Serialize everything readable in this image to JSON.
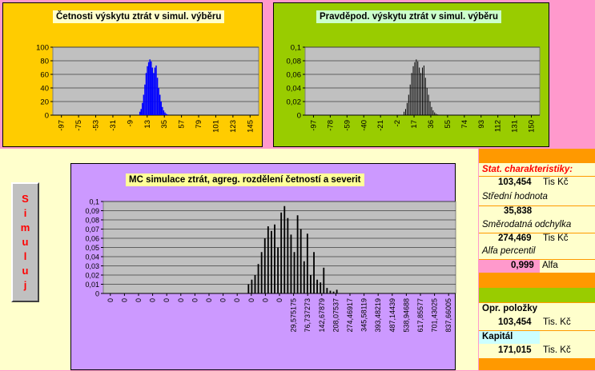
{
  "chart_data": [
    {
      "type": "bar",
      "title": "Četnosti výskytu ztrát v simul. výběru",
      "color": "#0000ff",
      "ylim": [
        0,
        100
      ],
      "yticks": [
        "0",
        "20",
        "40",
        "60",
        "80",
        "100"
      ],
      "xticks": [
        "-97",
        "-75",
        "-53",
        "-31",
        "-9",
        "13",
        "35",
        "57",
        "79",
        "101",
        "123",
        "145"
      ],
      "values": [
        5,
        9,
        18,
        30,
        45,
        62,
        72,
        78,
        82,
        79,
        70,
        62,
        70,
        73,
        55,
        40,
        30,
        20,
        12,
        7,
        4,
        2,
        1
      ]
    },
    {
      "type": "bar",
      "title": "Pravděpod. výskytu ztrát v simul. výběru",
      "color": "#000000",
      "ylim": [
        0,
        0.1
      ],
      "yticks": [
        "0",
        "0,02",
        "0,04",
        "0,06",
        "0,08",
        "0,1"
      ],
      "xticks": [
        "-97",
        "-78",
        "-59",
        "-40",
        "-21",
        "-2",
        "17",
        "36",
        "55",
        "74",
        "93",
        "112",
        "131",
        "150"
      ],
      "values": [
        0.005,
        0.009,
        0.018,
        0.03,
        0.045,
        0.062,
        0.072,
        0.078,
        0.082,
        0.079,
        0.07,
        0.062,
        0.07,
        0.073,
        0.055,
        0.04,
        0.03,
        0.02,
        0.012,
        0.007,
        0.004,
        0.002,
        0.001
      ]
    },
    {
      "type": "bar",
      "title": "MC simulace ztrát, agreg. rozdělení četností a severit",
      "color": "#000000",
      "ylim": [
        0,
        0.1
      ],
      "yticks": [
        "0",
        "0,01",
        "0,02",
        "0,03",
        "0,04",
        "0,05",
        "0,06",
        "0,07",
        "0,08",
        "0,09",
        "0,1"
      ],
      "xticks": [
        "0",
        "0",
        "0",
        "0",
        "0",
        "0",
        "0",
        "0",
        "0",
        "0",
        "0",
        "0",
        "0",
        "29,575175",
        "76,737273",
        "142,67879",
        "208,07537",
        "274,46917",
        "345,58119",
        "393,48219",
        "487,14439",
        "538,94688",
        "617,85577",
        "701,43025",
        "837,66005"
      ],
      "values": [
        0.01,
        0.015,
        0.02,
        0.032,
        0.045,
        0.06,
        0.073,
        0.068,
        0.075,
        0.05,
        0.088,
        0.095,
        0.082,
        0.064,
        0.045,
        0.085,
        0.07,
        0.035,
        0.065,
        0.02,
        0.045,
        0.015,
        0.012,
        0.028,
        0.006,
        0.003,
        0.002,
        0.004
      ]
    }
  ],
  "button": {
    "letters": [
      "S",
      "i",
      "m",
      "u",
      "l",
      "u",
      "j"
    ]
  },
  "stats": {
    "header": "Stat. charakteristiky:",
    "mean_value": "103,454",
    "mean_unit": "Tis Kč",
    "mean_label": "Střední hodnota",
    "sd_value": "35,838",
    "sd_label": "Směrodatná odchylka",
    "perc_value": "274,469",
    "perc_unit": "Tis Kč",
    "perc_label": "Alfa percentil",
    "alpha_value": "0,999",
    "alpha_label": "Alfa",
    "opr_label": "Opr. položky",
    "opr_value": "103,454",
    "opr_unit": "Tis. Kč",
    "kap_label": "Kapitál",
    "kap_value": "171,015",
    "kap_unit": "Tis. Kč"
  }
}
